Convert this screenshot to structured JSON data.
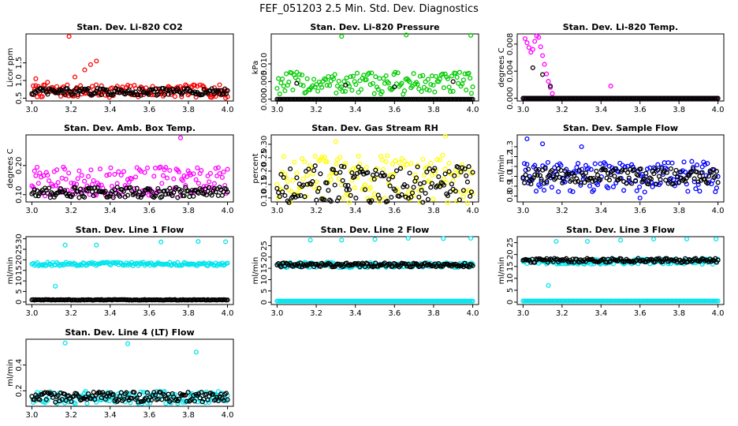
{
  "figure_title": "FEF_051203  2.5 Min. Std. Dev. Diagnostics",
  "colors": {
    "red": "#ff0000",
    "green": "#00cc00",
    "magenta": "#ff00ff",
    "yellow": "#ffff00",
    "blue": "#0000ff",
    "cyan": "#00e5ee",
    "black": "#000000"
  },
  "chart_data": [
    {
      "type": "scatter",
      "title": "Stan. Dev. Li-820 CO2",
      "xlabel": "",
      "ylabel": "Licor ppm",
      "xlim": [
        2.97,
        4.03
      ],
      "ylim": [
        0.42,
        2.32
      ],
      "xticks": [
        "3.0",
        "3.2",
        "3.4",
        "3.6",
        "3.8",
        "4.0"
      ],
      "yticks": [
        "0.5",
        "1.0",
        "1.5"
      ],
      "grid": false,
      "series": [
        {
          "color": "red",
          "base": 0.7,
          "spread": 0.18,
          "outliers": [
            [
              3.02,
              1.05
            ],
            [
              3.08,
              0.95
            ],
            [
              3.19,
              2.25
            ],
            [
              3.22,
              1.1
            ],
            [
              3.27,
              1.3
            ],
            [
              3.3,
              1.45
            ],
            [
              3.33,
              1.55
            ],
            [
              3.99,
              0.5
            ]
          ]
        },
        {
          "color": "black",
          "base": 0.68,
          "spread": 0.1,
          "outliers": []
        }
      ]
    },
    {
      "type": "scatter",
      "title": "Stan. Dev. Li-820 Pressure",
      "xlabel": "",
      "ylabel": "kPa",
      "xlim": [
        2.97,
        4.03
      ],
      "ylim": [
        -0.0005,
        0.0185
      ],
      "xticks": [
        "3.0",
        "3.2",
        "3.4",
        "3.6",
        "3.8",
        "4.0"
      ],
      "yticks": [
        "0.000",
        "0.005",
        "0.010"
      ],
      "grid": false,
      "series": [
        {
          "color": "green",
          "base": 0.0045,
          "spread": 0.0032,
          "outliers": [
            [
              3.33,
              0.0178
            ],
            [
              3.66,
              0.0182
            ],
            [
              3.99,
              0.0181
            ]
          ]
        },
        {
          "color": "black",
          "base": 0.0,
          "spread": 0.0,
          "outliers": [
            [
              3.1,
              0.0045
            ],
            [
              3.35,
              0.004
            ],
            [
              3.6,
              0.0035
            ],
            [
              3.9,
              0.005
            ]
          ]
        }
      ]
    },
    {
      "type": "scatter",
      "title": "Stan. Dev. Li-820 Temp.",
      "xlabel": "",
      "ylabel": "degrees C",
      "xlim": [
        2.97,
        4.03
      ],
      "ylim": [
        -0.0004,
        0.0095
      ],
      "xticks": [
        "3.0",
        "3.2",
        "3.4",
        "3.6",
        "3.8",
        "4.0"
      ],
      "yticks": [
        "0.000",
        "0.004",
        "0.008"
      ],
      "grid": false,
      "series": [
        {
          "color": "magenta",
          "base": 0.0,
          "spread": 0.0,
          "outliers": [
            [
              3.01,
              0.0088
            ],
            [
              3.02,
              0.0082
            ],
            [
              3.03,
              0.0075
            ],
            [
              3.04,
              0.0068
            ],
            [
              3.05,
              0.0072
            ],
            [
              3.06,
              0.0084
            ],
            [
              3.07,
              0.0092
            ],
            [
              3.08,
              0.009
            ],
            [
              3.09,
              0.0076
            ],
            [
              3.1,
              0.0063
            ],
            [
              3.11,
              0.005
            ],
            [
              3.12,
              0.0036
            ],
            [
              3.13,
              0.0025
            ],
            [
              3.14,
              0.0016
            ],
            [
              3.15,
              0.0007
            ],
            [
              3.45,
              0.0018
            ]
          ]
        },
        {
          "color": "black",
          "base": 0.0,
          "spread": 0.0,
          "outliers": [
            [
              3.05,
              0.0045
            ],
            [
              3.1,
              0.0035
            ],
            [
              3.14,
              0.0018
            ]
          ]
        }
      ]
    },
    {
      "type": "scatter",
      "title": "Stan. Dev. Amb. Box Temp.",
      "xlabel": "",
      "ylabel": "degrees C",
      "xlim": [
        2.97,
        4.03
      ],
      "ylim": [
        0.075,
        0.305
      ],
      "xticks": [
        "3.0",
        "3.2",
        "3.4",
        "3.6",
        "3.8",
        "4.0"
      ],
      "yticks": [
        "0.10",
        "0.20"
      ],
      "grid": false,
      "series": [
        {
          "color": "magenta",
          "base": 0.145,
          "spread": 0.05,
          "outliers": [
            [
              3.76,
              0.295
            ]
          ]
        },
        {
          "color": "black",
          "base": 0.108,
          "spread": 0.018,
          "outliers": []
        }
      ]
    },
    {
      "type": "scatter",
      "title": "Stan. Dev. Gas Stream RH",
      "xlabel": "",
      "ylabel": "percent",
      "xlim": [
        2.97,
        4.03
      ],
      "ylim": [
        0.085,
        0.335
      ],
      "xticks": [
        "3.0",
        "3.2",
        "3.4",
        "3.6",
        "3.8",
        "4.0"
      ],
      "yticks": [
        "0.10",
        "0.15",
        "0.20",
        "0.25",
        "0.30"
      ],
      "grid": false,
      "series": [
        {
          "color": "yellow",
          "base": 0.17,
          "spread": 0.09,
          "outliers": [
            [
              3.3,
              0.31
            ],
            [
              3.86,
              0.33
            ]
          ]
        },
        {
          "color": "black",
          "base": 0.15,
          "spread": 0.07,
          "outliers": []
        }
      ]
    },
    {
      "type": "scatter",
      "title": "Stan. Dev. Sample Flow",
      "xlabel": "",
      "ylabel": "ml/min",
      "xlim": [
        2.97,
        4.03
      ],
      "ylim": [
        0.74,
        1.42
      ],
      "xticks": [
        "3.0",
        "3.2",
        "3.4",
        "3.6",
        "3.8",
        "4.0"
      ],
      "yticks": [
        "0.8",
        "0.9",
        "1.0",
        "1.1",
        "1.2",
        "1.3"
      ],
      "grid": false,
      "series": [
        {
          "color": "blue",
          "base": 1.0,
          "spread": 0.16,
          "outliers": [
            [
              3.02,
              1.38
            ],
            [
              3.1,
              1.33
            ],
            [
              3.3,
              1.3
            ],
            [
              3.6,
              0.78
            ]
          ]
        },
        {
          "color": "black",
          "base": 1.0,
          "spread": 0.08,
          "outliers": []
        }
      ]
    },
    {
      "type": "scatter",
      "title": "Stan. Dev. Line 1 Flow",
      "xlabel": "",
      "ylabel": "ml/min",
      "xlim": [
        2.97,
        4.03
      ],
      "ylim": [
        -1.2,
        31
      ],
      "xticks": [
        "3.0",
        "3.2",
        "3.4",
        "3.6",
        "3.8",
        "4.0"
      ],
      "yticks": [
        "0",
        "5",
        "10",
        "15",
        "20",
        "25",
        "30"
      ],
      "grid": false,
      "series": [
        {
          "color": "cyan",
          "base": 18.0,
          "spread": 0.8,
          "outliers": [
            [
              3.12,
              7.5
            ],
            [
              3.17,
              27.0
            ],
            [
              3.33,
              27.0
            ],
            [
              3.66,
              28.5
            ],
            [
              3.85,
              28.7
            ],
            [
              3.99,
              28.6
            ]
          ]
        },
        {
          "color": "black",
          "base": 1.0,
          "spread": 0.15,
          "outliers": []
        }
      ]
    },
    {
      "type": "scatter",
      "title": "Stan. Dev. Line 2 Flow",
      "xlabel": "",
      "ylabel": "ml/min",
      "xlim": [
        2.97,
        4.03
      ],
      "ylim": [
        -1.0,
        29
      ],
      "xticks": [
        "3.0",
        "3.2",
        "3.4",
        "3.6",
        "3.8",
        "4.0"
      ],
      "yticks": [
        "0",
        "5",
        "10",
        "15",
        "20",
        "25"
      ],
      "grid": false,
      "series": [
        {
          "color": "cyan",
          "base": 0.5,
          "spread": 0.0,
          "outliers": [
            [
              3.17,
              27.5
            ],
            [
              3.33,
              27.5
            ],
            [
              3.5,
              27.8
            ],
            [
              3.67,
              28.3
            ],
            [
              3.85,
              28.2
            ],
            [
              3.99,
              28.3
            ]
          ]
        },
        {
          "color": "cyan",
          "base": 16.5,
          "spread": 1.2,
          "outliers": []
        },
        {
          "color": "black",
          "base": 16.5,
          "spread": 0.9,
          "outliers": []
        }
      ]
    },
    {
      "type": "scatter",
      "title": "Stan. Dev. Line 3 Flow",
      "xlabel": "",
      "ylabel": "ml/min",
      "xlim": [
        2.97,
        4.03
      ],
      "ylim": [
        -1.0,
        27.5
      ],
      "xticks": [
        "3.0",
        "3.2",
        "3.4",
        "3.6",
        "3.8",
        "4.0"
      ],
      "yticks": [
        "0",
        "5",
        "10",
        "15",
        "20",
        "25"
      ],
      "grid": false,
      "series": [
        {
          "color": "cyan",
          "base": 0.5,
          "spread": 0.0,
          "outliers": [
            [
              3.13,
              7.0
            ],
            [
              3.17,
              25.5
            ],
            [
              3.33,
              25.5
            ],
            [
              3.5,
              26.0
            ],
            [
              3.67,
              26.5
            ],
            [
              3.84,
              26.5
            ],
            [
              3.99,
              26.5
            ]
          ]
        },
        {
          "color": "cyan",
          "base": 17.0,
          "spread": 1.1,
          "outliers": []
        },
        {
          "color": "black",
          "base": 17.5,
          "spread": 0.9,
          "outliers": []
        }
      ]
    },
    {
      "type": "scatter",
      "title": "Stan. Dev. Line 4 (LT) Flow",
      "xlabel": "",
      "ylabel": "ml/min",
      "xlim": [
        2.97,
        4.03
      ],
      "ylim": [
        0.08,
        0.6
      ],
      "xticks": [
        "3.0",
        "3.2",
        "3.4",
        "3.6",
        "3.8",
        "4.0"
      ],
      "yticks": [
        "0.2",
        "0.4"
      ],
      "grid": false,
      "series": [
        {
          "color": "cyan",
          "base": 0.15,
          "spread": 0.05,
          "outliers": [
            [
              3.17,
              0.57
            ],
            [
              3.49,
              0.565
            ],
            [
              3.84,
              0.5
            ]
          ]
        },
        {
          "color": "black",
          "base": 0.15,
          "spread": 0.04,
          "outliers": []
        }
      ]
    }
  ]
}
